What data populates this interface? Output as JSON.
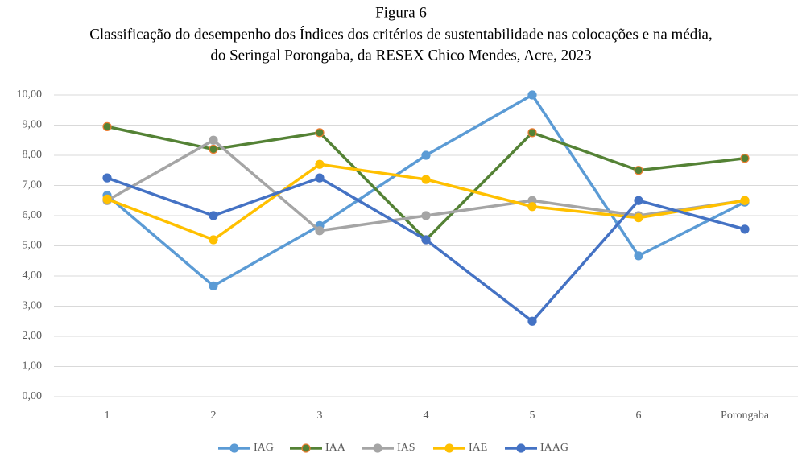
{
  "chart_data": {
    "type": "line",
    "title": "Figura 6",
    "subtitle": [
      "Classificação do desempenho dos Índices dos critérios de sustentabilidade nas colocações e na média,",
      "do Seringal Porongaba, da RESEX Chico Mendes, Acre, 2023"
    ],
    "categories": [
      "1",
      "2",
      "3",
      "4",
      "5",
      "6",
      "Porongaba"
    ],
    "series": [
      {
        "name": "IAG",
        "color": "#5b9bd5",
        "values": [
          6.67,
          3.67,
          5.67,
          8.0,
          10.0,
          4.67,
          6.45
        ]
      },
      {
        "name": "IAA",
        "color": "#548235",
        "marker_edge": "#ed7d31",
        "values": [
          8.95,
          8.2,
          8.75,
          5.2,
          8.75,
          7.5,
          7.9
        ]
      },
      {
        "name": "IAS",
        "color": "#a5a5a5",
        "values": [
          6.5,
          8.5,
          5.5,
          6.0,
          6.5,
          6.0,
          6.5
        ]
      },
      {
        "name": "IAE",
        "color": "#ffc000",
        "values": [
          6.55,
          5.2,
          7.7,
          7.2,
          6.3,
          5.93,
          6.5
        ]
      },
      {
        "name": "IAAG",
        "color": "#4472c4",
        "values": [
          7.25,
          6.0,
          7.25,
          5.2,
          2.5,
          6.5,
          5.55
        ]
      }
    ],
    "ylim": [
      0,
      10
    ],
    "yticks": [
      {
        "value": 0,
        "label": "0,00"
      },
      {
        "value": 1,
        "label": "1,00"
      },
      {
        "value": 2,
        "label": "2,00"
      },
      {
        "value": 3,
        "label": "3,00"
      },
      {
        "value": 4,
        "label": "4,00"
      },
      {
        "value": 5,
        "label": "5,00"
      },
      {
        "value": 6,
        "label": "6,00"
      },
      {
        "value": 7,
        "label": "7,00"
      },
      {
        "value": 8,
        "label": "8,00"
      },
      {
        "value": 9,
        "label": "9,00"
      },
      {
        "value": 10,
        "label": "10,00"
      }
    ],
    "grid": true,
    "legend": "bottom"
  }
}
